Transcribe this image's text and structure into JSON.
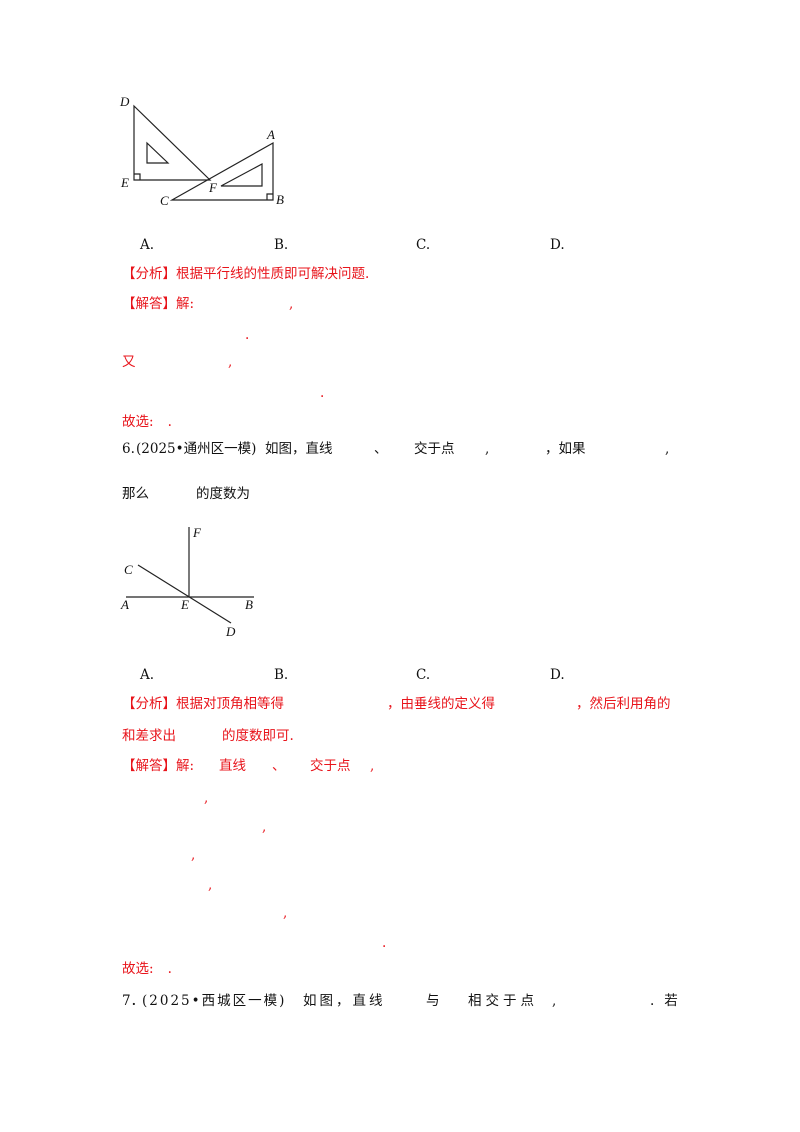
{
  "figure1": {
    "labels": {
      "D": "D",
      "E": "E",
      "C": "C",
      "F": "F",
      "A": "A",
      "B": "B"
    }
  },
  "q5": {
    "options": [
      "A.",
      "B.",
      "C.",
      "D."
    ],
    "analysis_tag": "【分析】",
    "analysis_text": "根据平行线的性质即可解决问题.",
    "solution_tag": "【解答】",
    "solution_lead": "解:",
    "lines": [
      ",",
      ".",
      "又",
      ",",
      "."
    ],
    "answer_label": "故选:",
    "answer_dot": "."
  },
  "q6": {
    "number": "6.",
    "source": "(2025•通州区一模)",
    "stem_parts": [
      "如图，直线",
      "、",
      "交于点",
      ",",
      "，如果",
      ","
    ],
    "stem_line2": [
      "那么",
      "的度数为"
    ],
    "figure_labels": {
      "F": "F",
      "C": "C",
      "A": "A",
      "E": "E",
      "B": "B",
      "D": "D"
    },
    "options": [
      "A.",
      "B.",
      "C.",
      "D."
    ],
    "analysis_tag": "【分析】",
    "analysis_parts": [
      "根据对顶角相等得",
      "，由垂线的定义得",
      "，然后利用角的"
    ],
    "analysis_line2": [
      "和差求出",
      "的度数即可."
    ],
    "solution_tag": "【解答】",
    "solution_parts": [
      "解:",
      "直线",
      "、",
      "交于点",
      ","
    ],
    "solution_lines": [
      ",",
      ",",
      ",",
      ",",
      ",",
      "."
    ],
    "answer_label": "故选:",
    "answer_dot": "."
  },
  "q7": {
    "number": "7．",
    "source": "(2025•西城区一模)",
    "stem_parts": [
      "如图，直线",
      "与",
      "相交于点",
      ",",
      ".若"
    ]
  }
}
